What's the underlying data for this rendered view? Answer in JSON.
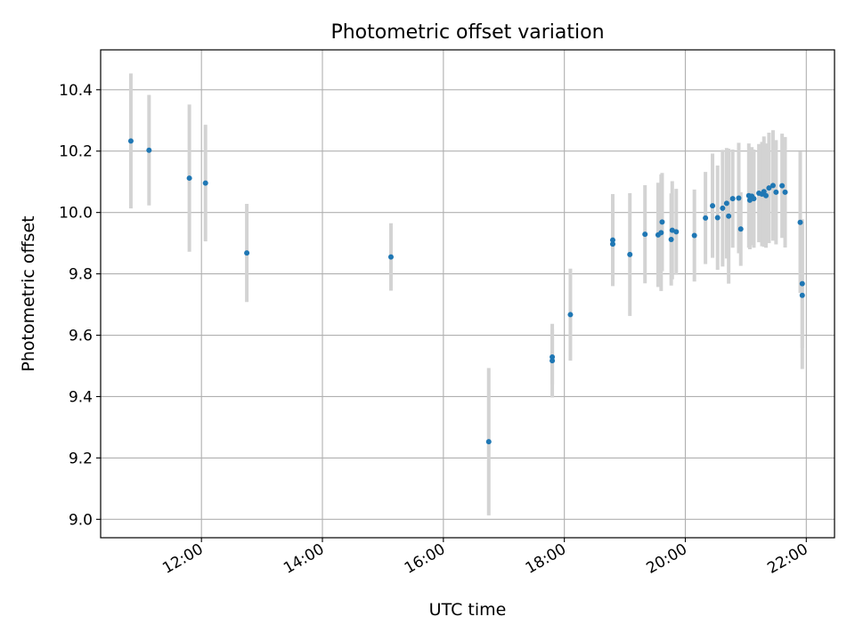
{
  "chart_data": {
    "type": "scatter",
    "title": "Photometric offset variation",
    "xlabel": "UTC time",
    "ylabel": "Photometric offset",
    "x_tick_labels": [
      "12:00",
      "14:00",
      "16:00",
      "18:00",
      "20:00",
      "22:00"
    ],
    "x_tick_times": [
      "12:00",
      "14:00",
      "16:00",
      "18:00",
      "20:00",
      "22:00"
    ],
    "y_ticks": [
      9.0,
      9.2,
      9.4,
      9.6,
      9.8,
      10.0,
      10.2,
      10.4
    ],
    "xlim": [
      "10:20",
      "22:28"
    ],
    "ylim": [
      8.94,
      10.53
    ],
    "grid": true,
    "point_color": "#1f77b4",
    "errorbar_color": "#d3d3d3",
    "series": [
      {
        "x": [
          "10:50",
          "11:08",
          "11:48",
          "12:04",
          "12:45",
          "15:08",
          "16:45",
          "17:48",
          "17:48",
          "18:06",
          "18:48",
          "18:48",
          "19:05",
          "19:20",
          "19:33",
          "19:36",
          "19:37",
          "19:46",
          "19:47",
          "19:51",
          "20:09",
          "20:20",
          "20:27",
          "20:32",
          "20:37",
          "20:41",
          "20:43",
          "20:47",
          "20:53",
          "20:55",
          "21:03",
          "21:04",
          "21:06",
          "21:08",
          "21:13",
          "21:16",
          "21:18",
          "21:20",
          "21:23",
          "21:27",
          "21:30",
          "21:36",
          "21:39",
          "21:54",
          "21:56",
          "21:56"
        ],
        "y": [
          10.233,
          10.203,
          10.112,
          10.096,
          9.868,
          9.855,
          9.253,
          9.529,
          9.517,
          9.667,
          9.91,
          9.897,
          9.863,
          9.929,
          9.927,
          9.934,
          9.969,
          9.912,
          9.942,
          9.937,
          9.925,
          9.982,
          10.022,
          9.983,
          10.014,
          10.03,
          9.988,
          10.045,
          10.047,
          9.946,
          10.055,
          10.04,
          10.053,
          10.045,
          10.063,
          10.06,
          10.068,
          10.055,
          10.08,
          10.088,
          10.066,
          10.087,
          10.066,
          9.968,
          9.73,
          9.768
        ],
        "error": [
          0.22,
          0.18,
          0.24,
          0.19,
          0.16,
          0.11,
          0.24,
          0.09,
          0.12,
          0.15,
          0.15,
          0.13,
          0.2,
          0.16,
          0.17,
          0.19,
          0.16,
          0.15,
          0.16,
          0.14,
          0.15,
          0.15,
          0.17,
          0.17,
          0.19,
          0.18,
          0.22,
          0.16,
          0.18,
          0.12,
          0.17,
          0.16,
          0.16,
          0.16,
          0.16,
          0.17,
          0.18,
          0.17,
          0.18,
          0.18,
          0.17,
          0.17,
          0.18,
          0.23,
          0.24,
          0.21
        ]
      }
    ]
  }
}
